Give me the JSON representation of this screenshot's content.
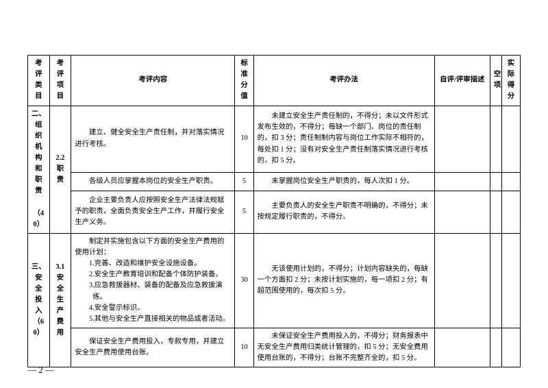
{
  "header": {
    "cat": "考评类目",
    "item": "考评项目",
    "content": "考评内容",
    "score": "标准分值",
    "method": "考评办法",
    "desc": "自评/评审描述",
    "blank": "空项",
    "actual": "实际得分"
  },
  "rows": [
    {
      "cat": "二、组织机构和职责",
      "cat_pts": "（40）",
      "item": "2.2 职责",
      "content_indent": "建立、健全安全生产责任制，并对落实情况进行考核。",
      "score": "10",
      "method_indent": "未建立安全生产责任制的，不得分；未以文件形式发布生效的，不得分；每缺一个部门、岗位的责任制的，扣 3 分；责任制制内容与岗位工作实际不相符的，每处扣 1 分；没有对安全生产责任制落实情况进行考核的，扣 5 分。"
    },
    {
      "content_indent": "各级人员应掌握本岗位的安全生产职责。",
      "score": "5",
      "method_indent": "未掌握岗位安全生产职责的，每人次扣 1 分。"
    },
    {
      "content_indent": "企业主要负责人应按照安全生产法律法规赋予的职责，全面负责安全生产工作，并履行安全生产义务。",
      "score": "5",
      "method_indent": "主要负责人的安全生产职责不明确的，不得分；未按规定履行职责的，不得分。"
    },
    {
      "cat": "三、安全投入",
      "cat_pts": "（60）",
      "item": "3.1 安全生产费用",
      "content_lead": "制定并实施包含以下方面的安全生产费用的使用计划：",
      "content_lines": [
        "1.完善、改造和维护安全设施设备。",
        "2.安全生产教育培训和配备个体防护装备。",
        "3.应急救援器材、装备的配备及应急救援演练。",
        "4.安全警示标识。",
        "5.其他与安全生产直接相关的物品或者活动。"
      ],
      "score": "30",
      "method_indent": "无该使用计划的，不得分；计划内容缺失的，每缺一个方面扣 2 分；未按计划实施的，每一项扣 2 分；有超范围使用的，每次扣 5 分。"
    },
    {
      "content_indent": "保证安全生产费用投入，专款专用，并建立安全生产费用使用台账。",
      "score": "10",
      "method_indent": "未保证安全生产费用投入的，不得分；财务报表中无安全生产费用归类统计管理的，扣 5 分；无安全费用使用台账的，不得分；台账不完整齐全的，扣 5 分。"
    }
  ],
  "page_num": "— 2 —"
}
